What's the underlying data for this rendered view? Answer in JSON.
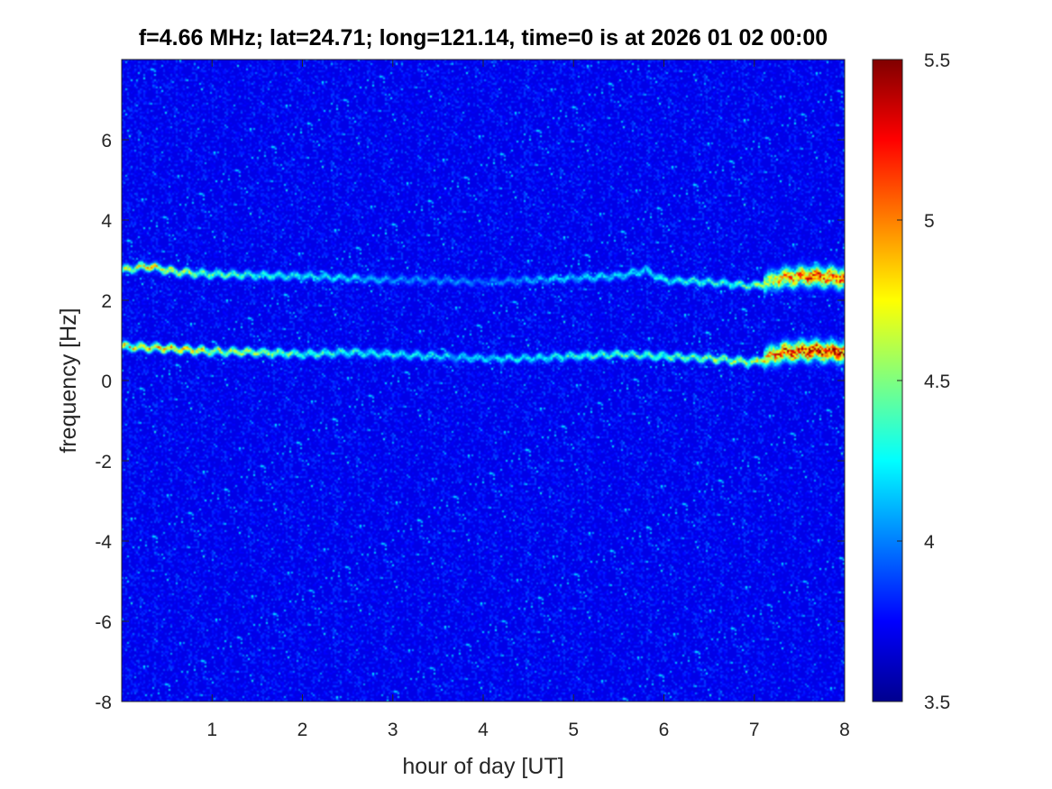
{
  "chart_data": {
    "type": "heatmap",
    "title": "f=4.66 MHz;  lat=24.71; long=121.14, time=0 is at 2026 01 02 00:00",
    "xlabel": "hour of day [UT]",
    "ylabel": "frequency [Hz]",
    "xlim": [
      0,
      8
    ],
    "ylim": [
      -8,
      8
    ],
    "xticks": [
      1,
      2,
      3,
      4,
      5,
      6,
      7,
      8
    ],
    "yticks": [
      -8,
      -6,
      -4,
      -2,
      0,
      2,
      4,
      6
    ],
    "colorbar": {
      "range": [
        3.5,
        5.5
      ],
      "ticks": [
        3.5,
        4,
        4.5,
        5,
        5.5
      ],
      "colormap": "jet"
    },
    "background_level": 3.7,
    "traces": [
      {
        "points": [
          [
            0,
            2.75
          ],
          [
            0.3,
            2.85
          ],
          [
            0.6,
            2.7
          ],
          [
            1.0,
            2.65
          ],
          [
            1.5,
            2.62
          ],
          [
            2.0,
            2.6
          ],
          [
            2.5,
            2.55
          ],
          [
            3.0,
            2.5
          ],
          [
            3.5,
            2.5
          ],
          [
            4.0,
            2.45
          ],
          [
            4.5,
            2.5
          ],
          [
            5.0,
            2.55
          ],
          [
            5.5,
            2.6
          ],
          [
            5.8,
            2.75
          ],
          [
            6.0,
            2.5
          ],
          [
            6.5,
            2.45
          ],
          [
            7.0,
            2.35
          ],
          [
            7.3,
            2.55
          ],
          [
            7.6,
            2.6
          ],
          [
            8.0,
            2.55
          ]
        ],
        "intensity": [
          [
            0,
            4.6
          ],
          [
            0.3,
            5.0
          ],
          [
            1.0,
            4.5
          ],
          [
            2.0,
            4.3
          ],
          [
            3.0,
            4.1
          ],
          [
            4.0,
            4.0
          ],
          [
            5.0,
            4.2
          ],
          [
            6.0,
            4.3
          ],
          [
            7.0,
            4.5
          ],
          [
            7.3,
            5.0
          ],
          [
            7.6,
            5.3
          ],
          [
            8.0,
            5.3
          ]
        ]
      },
      {
        "points": [
          [
            0,
            0.85
          ],
          [
            0.5,
            0.8
          ],
          [
            1.0,
            0.72
          ],
          [
            1.5,
            0.7
          ],
          [
            2.0,
            0.65
          ],
          [
            2.5,
            0.7
          ],
          [
            3.0,
            0.65
          ],
          [
            3.5,
            0.6
          ],
          [
            4.0,
            0.55
          ],
          [
            4.5,
            0.55
          ],
          [
            5.0,
            0.6
          ],
          [
            5.5,
            0.65
          ],
          [
            6.0,
            0.6
          ],
          [
            6.5,
            0.55
          ],
          [
            7.0,
            0.45
          ],
          [
            7.3,
            0.7
          ],
          [
            7.6,
            0.75
          ],
          [
            8.0,
            0.7
          ]
        ],
        "intensity": [
          [
            0,
            4.9
          ],
          [
            0.5,
            5.0
          ],
          [
            1.0,
            4.8
          ],
          [
            2.0,
            4.5
          ],
          [
            3.0,
            4.3
          ],
          [
            4.0,
            4.2
          ],
          [
            5.0,
            4.4
          ],
          [
            6.0,
            4.5
          ],
          [
            6.5,
            4.6
          ],
          [
            7.0,
            4.8
          ],
          [
            7.3,
            5.3
          ],
          [
            7.6,
            5.5
          ],
          [
            8.0,
            5.4
          ]
        ]
      }
    ]
  }
}
